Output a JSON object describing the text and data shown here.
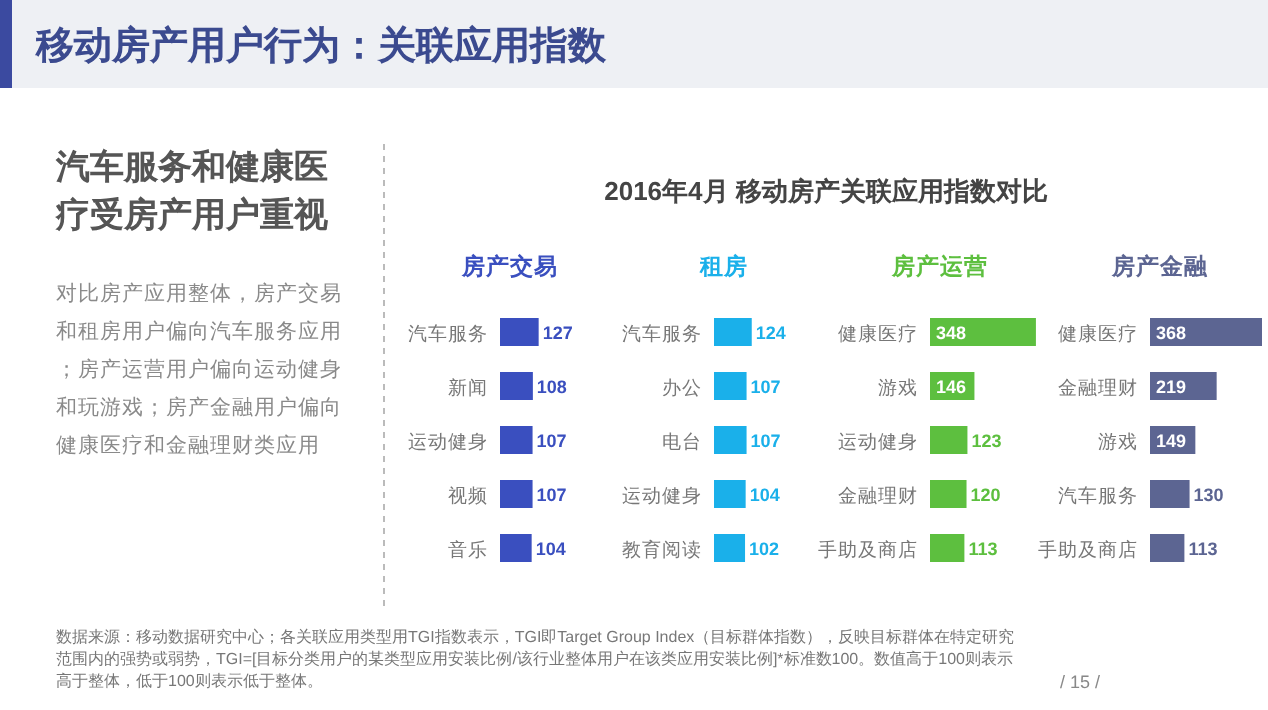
{
  "chart_data": [
    {
      "type": "other",
      "title": "移动房产用户行为：关联应用指数",
      "subtitle": "汽车服务和健康医疗受房产用户重视",
      "annotations": [
        "对比房产应用整体，房产交易和租房用户偏向汽车服务应用；房产运营用户偏向运动健身和玩游戏；房产金融用户偏向健康医疗和金融理财类应用",
        "2016年4月 移动房产关联应用指数对比",
        "数据来源：移动数据研究中心；各关联应用类型用TGI指数表示，TGI即Target Group Index（目标群体指数），反映目标群体在特定研究范围内的强势或弱势，TGI=[目标分类用户的某类型应用安装比例/该行业整体用户在该类应用安装比例]*标准数100。数值高于100则表示高于整体，低于100则表示低于整体。",
        "/ 15 /"
      ]
    },
    {
      "type": "bar",
      "orientation": "horizontal",
      "title": "房产交易",
      "categories": [
        "汽车服务",
        "新闻",
        "运动健身",
        "视频",
        "音乐"
      ],
      "values": [
        127,
        108,
        107,
        107,
        104
      ],
      "color": "#3a4fbf",
      "data_labels": true
    },
    {
      "type": "bar",
      "orientation": "horizontal",
      "title": "租房",
      "categories": [
        "汽车服务",
        "办公",
        "电台",
        "运动健身",
        "教育阅读"
      ],
      "values": [
        124,
        107,
        107,
        104,
        102
      ],
      "color": "#1ab0ea",
      "data_labels": true
    },
    {
      "type": "bar",
      "orientation": "horizontal",
      "title": "房产运营",
      "categories": [
        "健康医疗",
        "游戏",
        "运动健身",
        "金融理财",
        "手助及商店"
      ],
      "values": [
        348,
        146,
        123,
        120,
        113
      ],
      "color": "#5dbf3f",
      "data_labels": true
    },
    {
      "type": "bar",
      "orientation": "horizontal",
      "title": "房产金融",
      "categories": [
        "健康医疗",
        "金融理财",
        "游戏",
        "汽车服务",
        "手助及商店"
      ],
      "values": [
        368,
        219,
        149,
        130,
        113
      ],
      "color": "#5c6592",
      "data_labels": true
    }
  ]
}
